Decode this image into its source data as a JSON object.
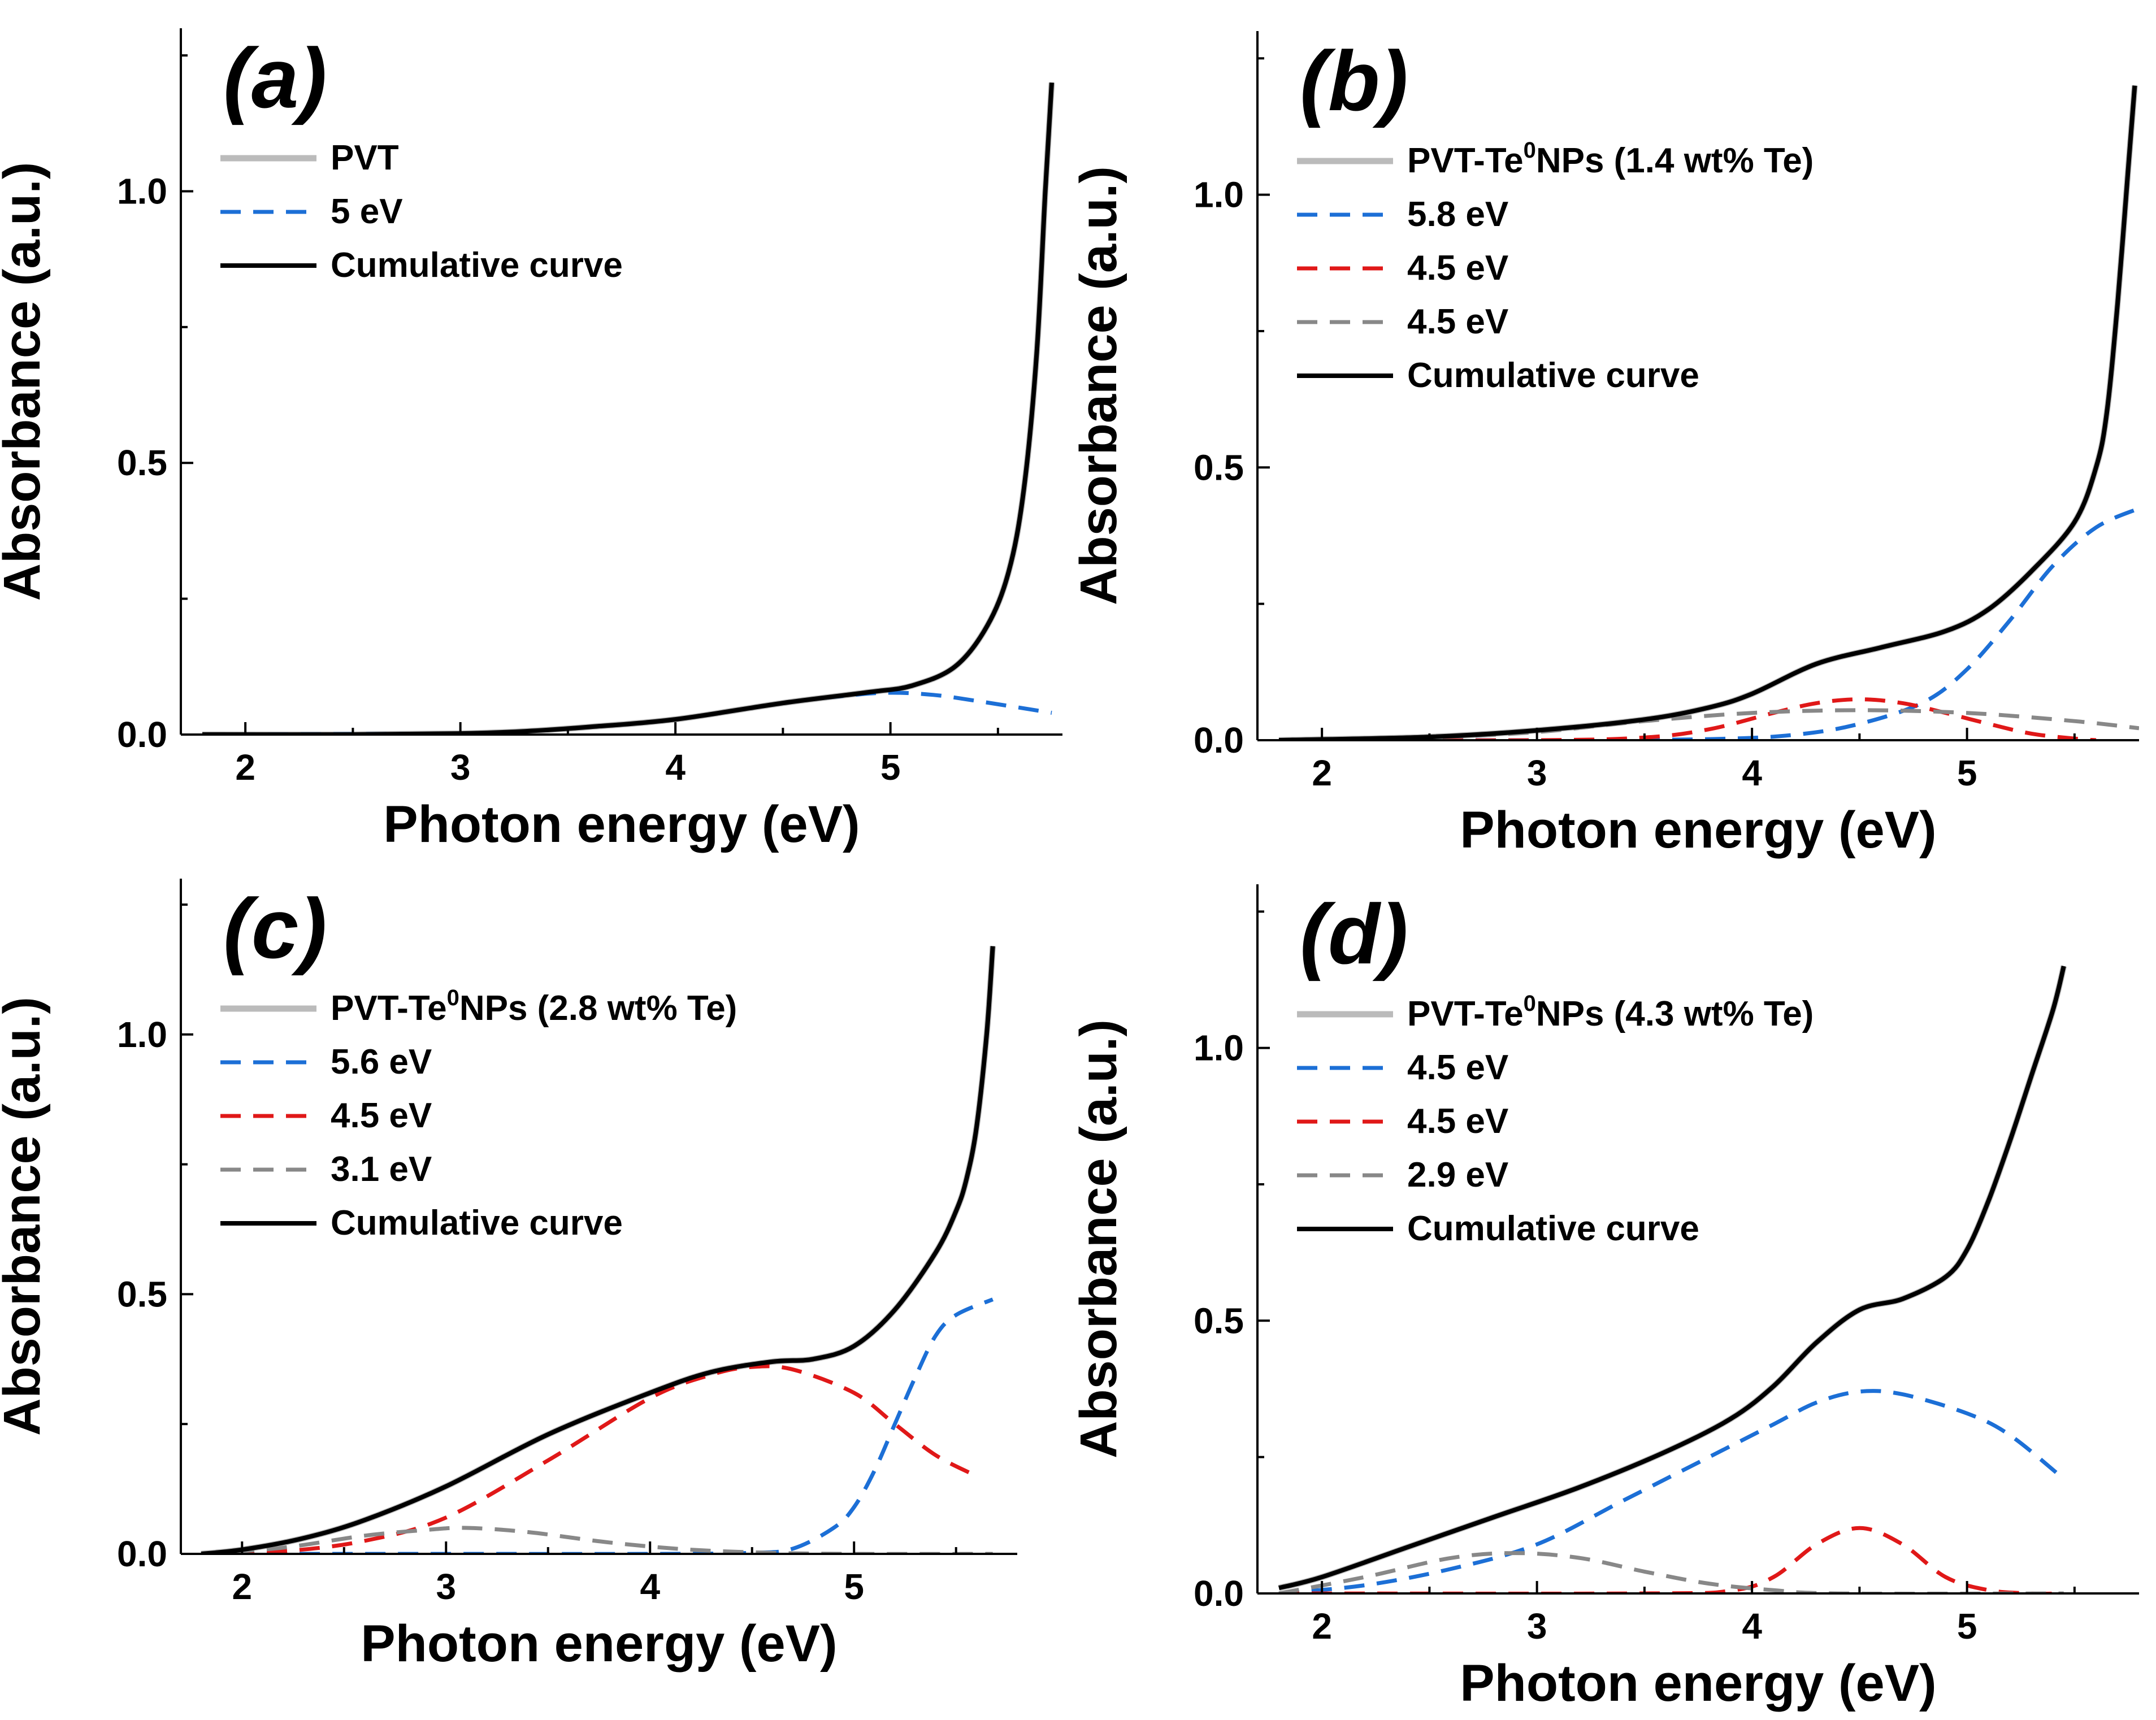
{
  "chart_data": [
    {
      "panel": "(a)",
      "type": "line",
      "xlabel": "Photon energy (eV)",
      "ylabel": "Absorbance (a.u.)",
      "xlim": [
        1.7,
        5.8
      ],
      "ylim": [
        0,
        1.3
      ],
      "xticks": [
        2,
        3,
        4,
        5
      ],
      "yticks": [
        0.0,
        0.5,
        1.0
      ],
      "xtick_labels": [
        "2",
        "3",
        "4",
        "5"
      ],
      "ytick_labels": [
        "0.0",
        "0.5",
        "1.0"
      ],
      "legend": "top-left",
      "series": [
        {
          "name": "PVT",
          "style": "solid",
          "color": "#bbbbbb",
          "x": [
            1.8,
            2.5,
            3.0,
            3.3,
            3.6,
            4.0,
            4.5,
            4.9,
            5.1,
            5.3,
            5.45,
            5.55,
            5.62,
            5.68,
            5.72,
            5.75
          ],
          "y": [
            0.0,
            0.0,
            0.002,
            0.006,
            0.014,
            0.028,
            0.058,
            0.078,
            0.09,
            0.125,
            0.2,
            0.3,
            0.45,
            0.7,
            1.0,
            1.2
          ]
        },
        {
          "name": "5 eV",
          "style": "dashed",
          "color": "#1c6fd6",
          "x": [
            1.8,
            3.0,
            3.3,
            3.6,
            4.0,
            4.5,
            4.8,
            5.0,
            5.2,
            5.4,
            5.75
          ],
          "y": [
            0.0,
            0.002,
            0.006,
            0.014,
            0.028,
            0.058,
            0.072,
            0.077,
            0.073,
            0.062,
            0.04
          ]
        },
        {
          "name": "Cumulative curve",
          "style": "solid",
          "color": "#000000",
          "x": [
            1.8,
            2.5,
            3.0,
            3.3,
            3.6,
            4.0,
            4.5,
            4.9,
            5.1,
            5.3,
            5.45,
            5.55,
            5.62,
            5.68,
            5.72,
            5.75
          ],
          "y": [
            0.0,
            0.0,
            0.002,
            0.006,
            0.014,
            0.028,
            0.058,
            0.078,
            0.09,
            0.125,
            0.2,
            0.3,
            0.45,
            0.7,
            1.0,
            1.2
          ]
        }
      ]
    },
    {
      "panel": "(b)",
      "type": "line",
      "xlabel": "Photon energy (eV)",
      "ylabel": "Absorbance (a.u.)",
      "xlim": [
        1.7,
        5.8
      ],
      "ylim": [
        0,
        1.3
      ],
      "xticks": [
        2,
        3,
        4,
        5
      ],
      "yticks": [
        0.0,
        0.5,
        1.0
      ],
      "xtick_labels": [
        "2",
        "3",
        "4",
        "5"
      ],
      "ytick_labels": [
        "0.0",
        "0.5",
        "1.0"
      ],
      "legend": "top-left",
      "series": [
        {
          "name": "PVT-Te0NPs (1.4 wt% Te)",
          "style": "solid",
          "color": "#bbbbbb",
          "x": [
            1.8,
            2.5,
            3.0,
            3.5,
            3.8,
            4.0,
            4.3,
            4.6,
            4.9,
            5.1,
            5.3,
            5.5,
            5.6,
            5.65,
            5.7,
            5.75,
            5.78
          ],
          "y": [
            0.0,
            0.006,
            0.018,
            0.038,
            0.06,
            0.085,
            0.14,
            0.17,
            0.2,
            0.24,
            0.31,
            0.4,
            0.5,
            0.6,
            0.8,
            1.05,
            1.2
          ]
        },
        {
          "name": "5.8 eV",
          "style": "dashed",
          "color": "#1c6fd6",
          "x": [
            1.8,
            3.0,
            3.8,
            4.2,
            4.5,
            4.8,
            5.0,
            5.2,
            5.4,
            5.6,
            5.8
          ],
          "y": [
            0.0,
            0.0,
            0.002,
            0.01,
            0.03,
            0.07,
            0.13,
            0.22,
            0.32,
            0.39,
            0.425
          ]
        },
        {
          "name": "4.5 eV",
          "style": "dashed",
          "color": "#e01818",
          "x": [
            1.8,
            3.0,
            3.5,
            3.8,
            4.1,
            4.3,
            4.5,
            4.7,
            4.9,
            5.1,
            5.3,
            5.5,
            5.6
          ],
          "y": [
            0.0,
            0.0,
            0.005,
            0.02,
            0.05,
            0.068,
            0.075,
            0.068,
            0.05,
            0.03,
            0.012,
            0.003,
            0.0
          ]
        },
        {
          "name": "4.5 eV",
          "style": "dashed",
          "color": "#888888",
          "x": [
            1.8,
            2.5,
            3.0,
            3.5,
            4.0,
            4.5,
            5.0,
            5.5,
            5.8
          ],
          "y": [
            0.0,
            0.005,
            0.015,
            0.035,
            0.05,
            0.055,
            0.05,
            0.035,
            0.022
          ]
        },
        {
          "name": "Cumulative curve",
          "style": "solid",
          "color": "#000000",
          "x": [
            1.8,
            2.5,
            3.0,
            3.5,
            3.8,
            4.0,
            4.3,
            4.6,
            4.9,
            5.1,
            5.3,
            5.5,
            5.6,
            5.65,
            5.7,
            5.75,
            5.78
          ],
          "y": [
            0.0,
            0.006,
            0.018,
            0.038,
            0.06,
            0.085,
            0.14,
            0.17,
            0.2,
            0.24,
            0.31,
            0.4,
            0.5,
            0.6,
            0.8,
            1.05,
            1.2
          ]
        }
      ]
    },
    {
      "panel": "(c)",
      "type": "line",
      "xlabel": "Photon energy (eV)",
      "ylabel": "Absorbance (a.u.)",
      "xlim": [
        1.7,
        5.8
      ],
      "ylim": [
        0,
        1.3
      ],
      "xticks": [
        2,
        3,
        4,
        5
      ],
      "yticks": [
        0.0,
        0.5,
        1.0
      ],
      "xtick_labels": [
        "2",
        "3",
        "4",
        "5"
      ],
      "ytick_labels": [
        "0.0",
        "0.5",
        "1.0"
      ],
      "legend": "top-left",
      "series": [
        {
          "name": "PVT-Te0NPs (2.8 wt% Te)",
          "style": "solid",
          "color": "#bbbbbb",
          "x": [
            1.8,
            2.0,
            2.3,
            2.6,
            3.0,
            3.5,
            4.0,
            4.3,
            4.6,
            4.8,
            5.0,
            5.2,
            5.4,
            5.5,
            5.55,
            5.6,
            5.65,
            5.68
          ],
          "y": [
            0.0,
            0.008,
            0.03,
            0.065,
            0.13,
            0.23,
            0.31,
            0.35,
            0.37,
            0.375,
            0.4,
            0.47,
            0.58,
            0.66,
            0.72,
            0.82,
            1.0,
            1.17
          ]
        },
        {
          "name": "5.6 eV",
          "style": "dashed",
          "color": "#1c6fd6",
          "x": [
            1.8,
            3.0,
            4.0,
            4.5,
            4.7,
            4.9,
            5.0,
            5.1,
            5.2,
            5.3,
            5.4,
            5.5,
            5.68
          ],
          "y": [
            0.0,
            0.0,
            0.0,
            0.002,
            0.01,
            0.05,
            0.09,
            0.16,
            0.25,
            0.34,
            0.42,
            0.46,
            0.49
          ]
        },
        {
          "name": "4.5 eV",
          "style": "dashed",
          "color": "#e01818",
          "x": [
            1.8,
            2.2,
            2.6,
            3.0,
            3.5,
            4.0,
            4.3,
            4.5,
            4.7,
            5.0,
            5.2,
            5.4,
            5.6
          ],
          "y": [
            0.0,
            0.005,
            0.025,
            0.07,
            0.18,
            0.3,
            0.345,
            0.36,
            0.355,
            0.31,
            0.25,
            0.19,
            0.15
          ]
        },
        {
          "name": "3.1 eV",
          "style": "dashed",
          "color": "#888888",
          "x": [
            1.8,
            2.2,
            2.6,
            2.9,
            3.1,
            3.4,
            3.8,
            4.2,
            4.6,
            5.0,
            5.68
          ],
          "y": [
            0.0,
            0.012,
            0.035,
            0.046,
            0.05,
            0.042,
            0.022,
            0.008,
            0.002,
            0.0,
            0.0
          ]
        },
        {
          "name": "Cumulative curve",
          "style": "solid",
          "color": "#000000",
          "x": [
            1.8,
            2.0,
            2.3,
            2.6,
            3.0,
            3.5,
            4.0,
            4.3,
            4.6,
            4.8,
            5.0,
            5.2,
            5.4,
            5.5,
            5.55,
            5.6,
            5.65,
            5.68
          ],
          "y": [
            0.0,
            0.008,
            0.03,
            0.065,
            0.13,
            0.23,
            0.31,
            0.35,
            0.37,
            0.375,
            0.4,
            0.47,
            0.58,
            0.66,
            0.72,
            0.82,
            1.0,
            1.17
          ]
        }
      ]
    },
    {
      "panel": "(d)",
      "type": "line",
      "xlabel": "Photon energy (eV)",
      "ylabel": "Absorbance (a.u.)",
      "xlim": [
        1.7,
        5.8
      ],
      "ylim": [
        0,
        1.3
      ],
      "xticks": [
        2,
        3,
        4,
        5
      ],
      "yticks": [
        0.0,
        0.5,
        1.0
      ],
      "xtick_labels": [
        "2",
        "3",
        "4",
        "5"
      ],
      "ytick_labels": [
        "0.0",
        "0.5",
        "1.0"
      ],
      "legend": "top-left",
      "series": [
        {
          "name": "PVT-Te0NPs (4.3 wt% Te)",
          "style": "solid",
          "color": "#bbbbbb",
          "x": [
            1.8,
            2.0,
            2.4,
            2.8,
            3.2,
            3.6,
            3.9,
            4.1,
            4.3,
            4.5,
            4.7,
            4.9,
            5.0,
            5.1,
            5.2,
            5.3,
            5.4,
            5.45
          ],
          "y": [
            0.01,
            0.03,
            0.085,
            0.14,
            0.195,
            0.26,
            0.32,
            0.38,
            0.46,
            0.52,
            0.54,
            0.58,
            0.63,
            0.72,
            0.83,
            0.95,
            1.07,
            1.15
          ]
        },
        {
          "name": "4.5 eV",
          "style": "dashed",
          "color": "#1c6fd6",
          "x": [
            1.8,
            2.2,
            2.6,
            3.0,
            3.4,
            3.8,
            4.1,
            4.3,
            4.5,
            4.7,
            5.0,
            5.2,
            5.45
          ],
          "y": [
            0.0,
            0.015,
            0.045,
            0.09,
            0.17,
            0.25,
            0.31,
            0.35,
            0.37,
            0.365,
            0.33,
            0.29,
            0.21
          ]
        },
        {
          "name": "4.5 eV",
          "style": "dashed",
          "color": "#e01818",
          "x": [
            1.8,
            3.5,
            3.9,
            4.1,
            4.3,
            4.5,
            4.7,
            4.9,
            5.1,
            5.3,
            5.45
          ],
          "y": [
            0.0,
            0.0,
            0.005,
            0.03,
            0.09,
            0.12,
            0.09,
            0.03,
            0.006,
            0.0,
            0.0
          ]
        },
        {
          "name": "2.9 eV",
          "style": "dashed",
          "color": "#888888",
          "x": [
            1.8,
            2.2,
            2.6,
            2.9,
            3.2,
            3.5,
            3.8,
            4.1,
            4.4,
            5.45
          ],
          "y": [
            0.0,
            0.03,
            0.065,
            0.074,
            0.065,
            0.04,
            0.018,
            0.006,
            0.0,
            0.0
          ]
        },
        {
          "name": "Cumulative curve",
          "style": "solid",
          "color": "#000000",
          "x": [
            1.8,
            2.0,
            2.4,
            2.8,
            3.2,
            3.6,
            3.9,
            4.1,
            4.3,
            4.5,
            4.7,
            4.9,
            5.0,
            5.1,
            5.2,
            5.3,
            5.4,
            5.45
          ],
          "y": [
            0.01,
            0.03,
            0.085,
            0.14,
            0.195,
            0.26,
            0.32,
            0.38,
            0.46,
            0.52,
            0.54,
            0.58,
            0.63,
            0.72,
            0.83,
            0.95,
            1.07,
            1.15
          ]
        }
      ]
    }
  ]
}
